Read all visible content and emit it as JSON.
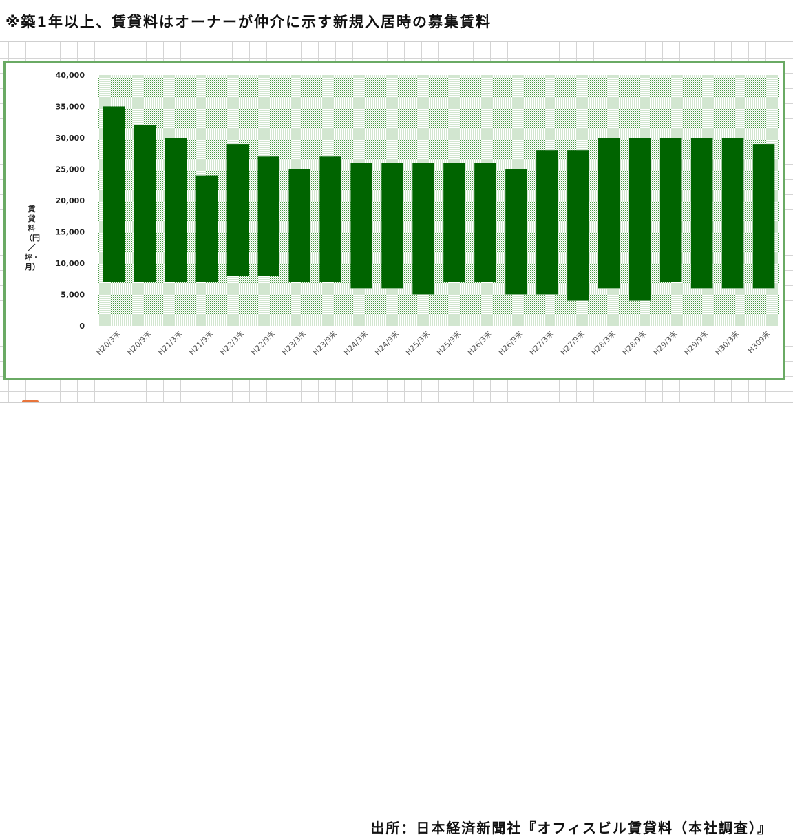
{
  "header": {
    "note": "※築1年以上、賃貸料はオーナーが仲介に示す新規入居時の募集賃料"
  },
  "footer": {
    "source": "出所：日本経済新聞社『オフィスビル賃貸料（本社調査）』"
  },
  "logo": {
    "text": "新",
    "color": "#e8743b"
  },
  "colors": {
    "bar": "#006400",
    "frame": "#6aaa64",
    "plot_dots": "#4a9a44"
  },
  "chart_data": {
    "type": "bar",
    "subtype": "floating-range",
    "ylabel": "賃貸料（円／坪・月）",
    "ylim": [
      0,
      40000
    ],
    "yticks": [
      "0",
      "5,000",
      "10,000",
      "15,000",
      "20,000",
      "25,000",
      "30,000",
      "35,000",
      "40,000"
    ],
    "ytick_values": [
      0,
      5000,
      10000,
      15000,
      20000,
      25000,
      30000,
      35000,
      40000
    ],
    "categories": [
      "H20/3末",
      "H20/9末",
      "H21/3末",
      "H21/9末",
      "H22/3末",
      "H22/9末",
      "H23/3末",
      "H23/9末",
      "H24/3末",
      "H24/9末",
      "H25/3末",
      "H25/9末",
      "H26/3末",
      "H26/9末",
      "H27/3末",
      "H27/9末",
      "H28/3末",
      "H28/9末",
      "H29/3末",
      "H29/9末",
      "H30/3末",
      "H309末"
    ],
    "series": [
      {
        "low": [
          7000,
          7000,
          7000,
          7000,
          8000,
          8000,
          7000,
          7000,
          6000,
          6000,
          5000,
          7000,
          7000,
          5000,
          5000,
          4000,
          6000,
          4000,
          7000,
          6000,
          6000,
          6000
        ],
        "high": [
          35000,
          32000,
          30000,
          24000,
          29000,
          27000,
          25000,
          27000,
          26000,
          26000,
          26000,
          26000,
          26000,
          25000,
          28000,
          28000,
          30000,
          30000,
          30000,
          30000,
          30000,
          29000
        ]
      }
    ],
    "grid": false,
    "legend": "none"
  }
}
